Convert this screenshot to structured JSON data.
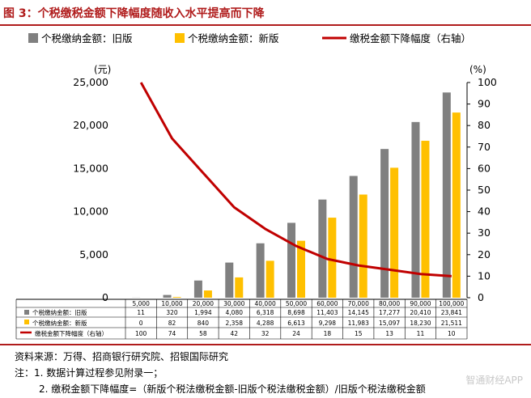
{
  "figure": {
    "title": "图 3：个税缴税金额下降幅度随收入水平提高而下降",
    "source": "资料来源：万得、招商银行研究院、招银国际研究",
    "note1": "注：1. 数据计算过程参见附录一；",
    "note2": "2. 缴税金额下降幅度=（新版个税法缴税金额-旧版个税法缴税金额）/旧版个税法缴税金额",
    "watermark": "智通财经APP"
  },
  "colors": {
    "old": "#808080",
    "new": "#ffc000",
    "line": "#c00000",
    "accent": "#b01c1c"
  },
  "chart_data": {
    "type": "bar",
    "title": "",
    "xlabel": "",
    "ylabel": "(元)",
    "y2label": "(%)",
    "ylim": [
      0,
      25000
    ],
    "y2lim": [
      0,
      100
    ],
    "yticks": [
      "25,000",
      "20,000",
      "15,000",
      "10,000",
      "5,000",
      "0"
    ],
    "y2ticks": [
      "100",
      "90",
      "80",
      "70",
      "60",
      "50",
      "40",
      "30",
      "20",
      "10",
      "0"
    ],
    "categories": [
      "5,000",
      "10,000",
      "20,000",
      "30,000",
      "40,000",
      "50,000",
      "60,000",
      "70,000",
      "80,000",
      "90,000",
      "100,000"
    ],
    "series": [
      {
        "name": "个税缴纳金额：旧版",
        "type": "bar",
        "axis": "left",
        "values": [
          11,
          320,
          1994,
          4080,
          6318,
          8698,
          11403,
          14145,
          17277,
          20410,
          23841
        ],
        "labels": [
          "11",
          "320",
          "1,994",
          "4,080",
          "6,318",
          "8,698",
          "11,403",
          "14,145",
          "17,277",
          "20,410",
          "23,841"
        ]
      },
      {
        "name": "个税缴纳金额：新版",
        "type": "bar",
        "axis": "left",
        "values": [
          0,
          82,
          840,
          2358,
          4288,
          6613,
          9298,
          11983,
          15097,
          18230,
          21511
        ],
        "labels": [
          "0",
          "82",
          "840",
          "2,358",
          "4,288",
          "6,613",
          "9,298",
          "11,983",
          "15,097",
          "18,230",
          "21,511"
        ]
      },
      {
        "name": "缴税金额下降幅度（右轴）",
        "type": "line",
        "axis": "right",
        "values": [
          100,
          74,
          58,
          42,
          32,
          24,
          18,
          15,
          13,
          11,
          10
        ],
        "labels": [
          "100",
          "74",
          "58",
          "42",
          "32",
          "24",
          "18",
          "15",
          "13",
          "11",
          "10"
        ]
      }
    ],
    "legend_position": "top",
    "grid": false
  }
}
